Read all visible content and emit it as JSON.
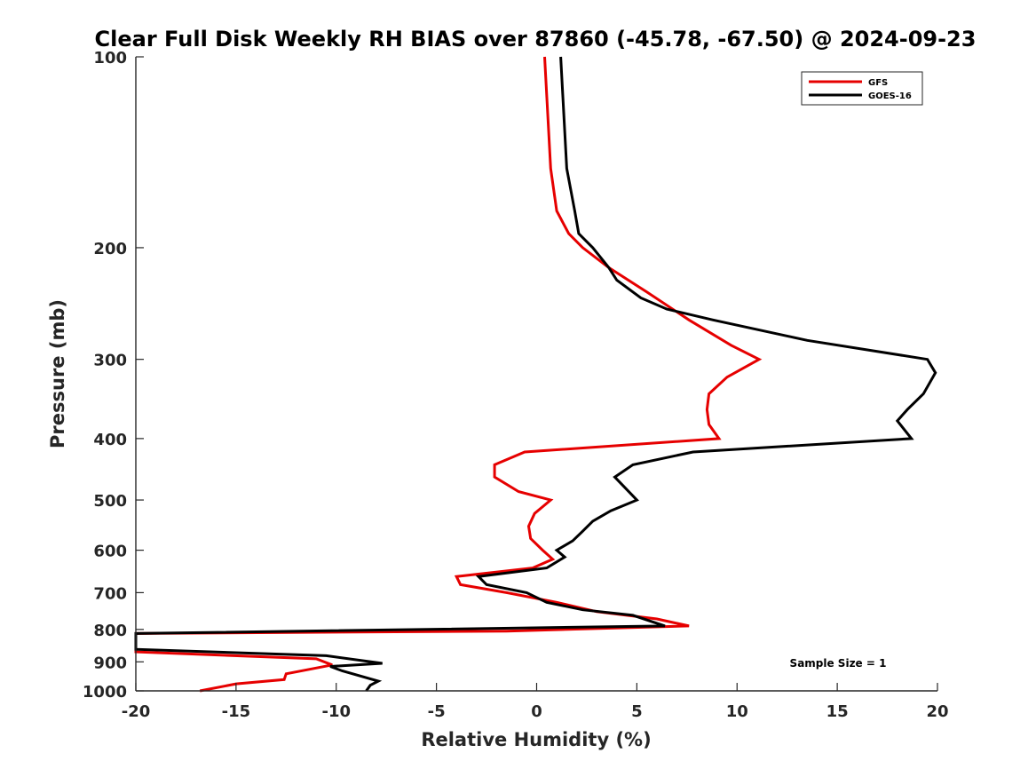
{
  "chart_data": {
    "type": "line",
    "title": "Clear Full Disk Weekly RH BIAS over 87860 (-45.78, -67.50) @ 2024-09-23",
    "xlabel": "Relative Humidity (%)",
    "ylabel": "Pressure (mb)",
    "xlim": [
      -20,
      20
    ],
    "ylim": [
      100,
      1000
    ],
    "yscale": "log",
    "y_reversed": true,
    "xticks": [
      -20,
      -15,
      -10,
      -5,
      0,
      5,
      10,
      15,
      20
    ],
    "xtick_labels": [
      "-20",
      "-15",
      "-10",
      "-5",
      "0",
      "5",
      "10",
      "15",
      "20"
    ],
    "yticks": [
      100,
      200,
      300,
      400,
      500,
      600,
      700,
      800,
      900,
      1000
    ],
    "ytick_labels": [
      "100",
      "200",
      "300",
      "400",
      "500",
      "600",
      "700",
      "800",
      "900",
      "1000"
    ],
    "legend_position": "top-right",
    "grid": false,
    "annotation": "Sample Size = 1",
    "series": [
      {
        "name": "GFS",
        "color": "#e60000",
        "points": [
          [
            0.4,
            100
          ],
          [
            0.7,
            150
          ],
          [
            1.0,
            175
          ],
          [
            1.6,
            190
          ],
          [
            2.3,
            200
          ],
          [
            3.6,
            215
          ],
          [
            5.5,
            235
          ],
          [
            7.6,
            260
          ],
          [
            9.7,
            285
          ],
          [
            11.1,
            300
          ],
          [
            9.5,
            320
          ],
          [
            8.6,
            340
          ],
          [
            8.5,
            360
          ],
          [
            8.6,
            380
          ],
          [
            9.1,
            400
          ],
          [
            -0.6,
            420
          ],
          [
            -2.1,
            440
          ],
          [
            -2.1,
            460
          ],
          [
            -0.9,
            485
          ],
          [
            0.7,
            500
          ],
          [
            -0.1,
            525
          ],
          [
            -0.4,
            550
          ],
          [
            -0.3,
            575
          ],
          [
            0.3,
            600
          ],
          [
            0.8,
            620
          ],
          [
            -0.2,
            640
          ],
          [
            -4.0,
            660
          ],
          [
            -3.8,
            680
          ],
          [
            -1.5,
            700
          ],
          [
            1.0,
            725
          ],
          [
            3.0,
            750
          ],
          [
            6.0,
            770
          ],
          [
            7.6,
            790
          ],
          [
            -1.5,
            805
          ],
          [
            -20.0,
            812
          ],
          [
            -20.0,
            868
          ],
          [
            -11.0,
            890
          ],
          [
            -10.2,
            910
          ],
          [
            -12.5,
            940
          ],
          [
            -12.6,
            960
          ],
          [
            -15.0,
            975
          ],
          [
            -16.8,
            1000
          ]
        ]
      },
      {
        "name": "GOES-16",
        "color": "#000000",
        "points": [
          [
            1.2,
            100
          ],
          [
            1.5,
            150
          ],
          [
            1.9,
            175
          ],
          [
            2.1,
            190
          ],
          [
            2.8,
            200
          ],
          [
            3.6,
            215
          ],
          [
            4.0,
            225
          ],
          [
            5.2,
            240
          ],
          [
            6.5,
            250
          ],
          [
            8.8,
            260
          ],
          [
            13.5,
            280
          ],
          [
            19.5,
            300
          ],
          [
            19.9,
            315
          ],
          [
            19.3,
            340
          ],
          [
            18.5,
            360
          ],
          [
            18.0,
            375
          ],
          [
            18.7,
            400
          ],
          [
            7.8,
            420
          ],
          [
            4.8,
            440
          ],
          [
            3.9,
            460
          ],
          [
            5.0,
            500
          ],
          [
            3.7,
            520
          ],
          [
            2.8,
            540
          ],
          [
            2.3,
            560
          ],
          [
            1.8,
            580
          ],
          [
            1.0,
            600
          ],
          [
            1.4,
            615
          ],
          [
            0.5,
            640
          ],
          [
            -2.9,
            660
          ],
          [
            -2.5,
            680
          ],
          [
            -0.5,
            700
          ],
          [
            0.5,
            725
          ],
          [
            2.3,
            745
          ],
          [
            4.8,
            760
          ],
          [
            6.4,
            790
          ],
          [
            -20.0,
            812
          ],
          [
            -20.0,
            860
          ],
          [
            -10.5,
            880
          ],
          [
            -7.7,
            905
          ],
          [
            -10.3,
            915
          ],
          [
            -9.7,
            930
          ],
          [
            -7.9,
            965
          ],
          [
            -8.3,
            980
          ],
          [
            -8.5,
            1000
          ]
        ]
      }
    ]
  }
}
